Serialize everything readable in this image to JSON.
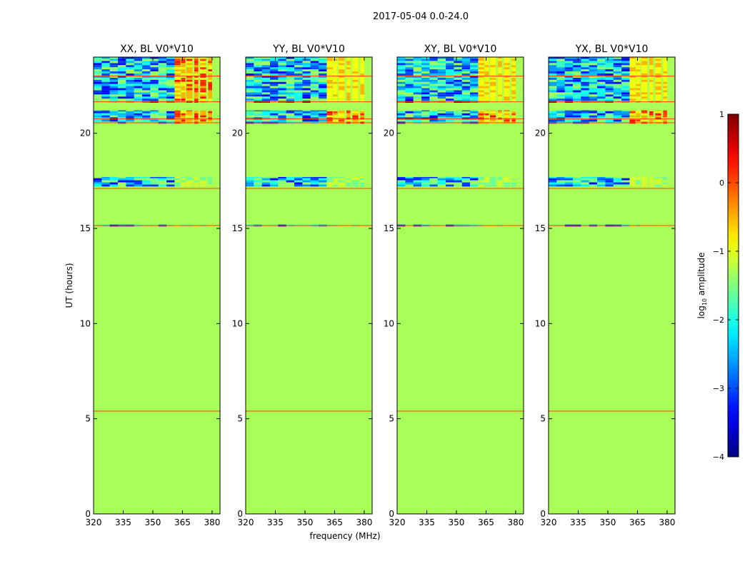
{
  "chart_data": {
    "type": "heatmap",
    "suptitle": "2017-05-04 0.0-24.0",
    "xlabel": "frequency (MHz)",
    "ylabel": "UT (hours)",
    "xlim": [
      320,
      384
    ],
    "ylim": [
      0,
      24
    ],
    "x_ticks": [
      320,
      335,
      350,
      365,
      380
    ],
    "x_tick_labels": [
      "320",
      "335",
      "350",
      "365",
      "380"
    ],
    "y_ticks": [
      0,
      5,
      10,
      15,
      20
    ],
    "y_tick_labels": [
      "0",
      "5",
      "10",
      "15",
      "20"
    ],
    "panels": [
      {
        "title": "XX, BL V0*V10",
        "polarization": "XX"
      },
      {
        "title": "YY, BL V0*V10",
        "polarization": "YY"
      },
      {
        "title": "XY, BL V0*V10",
        "polarization": "XY"
      },
      {
        "title": "YX, BL V0*V10",
        "polarization": "YX"
      }
    ],
    "background_log_amplitude": -1.3,
    "rfi_freq_band_mhz": [
      361,
      380
    ],
    "noisy_time_ranges_hours": [
      [
        20.5,
        21.2
      ],
      [
        21.6,
        24
      ],
      [
        17.2,
        17.7
      ],
      [
        15.1,
        15.2
      ]
    ],
    "line_times_hours": [
      5.4,
      15.15,
      17.1,
      20.55,
      20.75,
      21.65,
      23.0
    ],
    "colorbar": {
      "label": "log10 amplitude",
      "label_main": "log",
      "label_sub": "10",
      "label_rest": " amplitude",
      "range": [
        -4,
        1
      ],
      "ticks": [
        1,
        0,
        -1,
        -2,
        -3,
        -4
      ],
      "tick_labels": [
        "1",
        "0",
        "−1",
        "−2",
        "−3",
        "−4"
      ],
      "colormap": "jet"
    }
  }
}
